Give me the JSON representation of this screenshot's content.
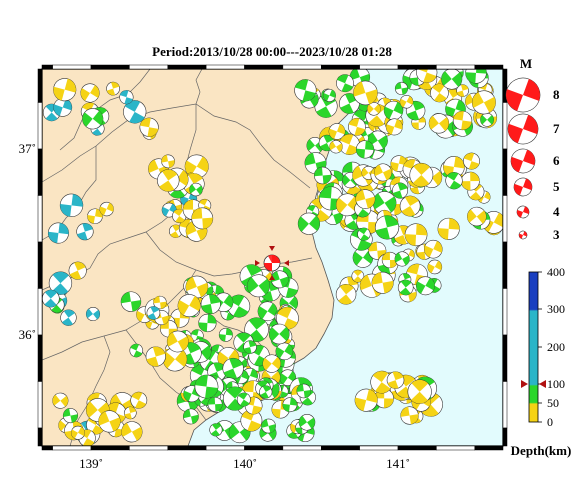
{
  "title": "Period:2013/10/28 00:00---2023/10/28 01:28",
  "lon_ticks": [
    "139˚",
    "140˚",
    "141˚"
  ],
  "lat_ticks": [
    "37˚",
    "36˚"
  ],
  "magnitude_legend": {
    "label": "M",
    "items": [
      "8",
      "7",
      "6",
      "5",
      "4",
      "3"
    ]
  },
  "depth_legend": {
    "label": "Depth(km)",
    "ticks": [
      "400",
      "300",
      "200",
      "100",
      "50",
      "0"
    ],
    "marker_value": "100"
  },
  "colors": {
    "land": "#fae5c3",
    "sea": "#e2fbfd",
    "shallow": "#f5d315",
    "mid": "#2bd62b",
    "deep": "#2ab5c8",
    "very_deep": "#1a3fc0",
    "highlight": "#ff1a1a"
  }
}
